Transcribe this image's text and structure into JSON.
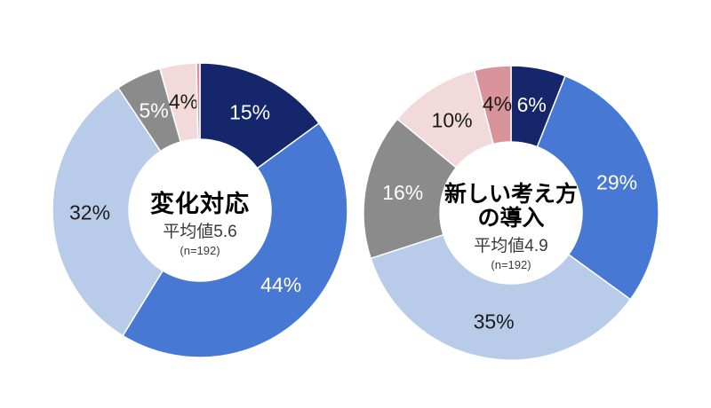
{
  "page": {
    "background_color": "#ffffff"
  },
  "chart_data": [
    {
      "type": "pie",
      "subtype": "donut",
      "title": "変化対応",
      "title_line2": "",
      "mean_label": "平均値5.6",
      "n_label": "(n=192)",
      "legend": "none",
      "start_angle_deg": 0,
      "direction": "clockwise",
      "segments": [
        {
          "label": "15%",
          "value": 15,
          "color": "#16266B",
          "text_color": "#ffffff"
        },
        {
          "label": "44%",
          "value": 44,
          "color": "#4779D4",
          "text_color": "#ffffff"
        },
        {
          "label": "32%",
          "value": 32,
          "color": "#B8CCE9",
          "text_color": "#1a1a1a"
        },
        {
          "label": "5%",
          "value": 5,
          "color": "#8B8B8B",
          "text_color": "#ffffff"
        },
        {
          "label": "4%",
          "value": 4,
          "color": "#F2DADA",
          "text_color": "#1a1a1a"
        },
        {
          "label": "",
          "value": 0,
          "draw_value": 0.4,
          "color": "#D9939B",
          "text_color": "#1a1a1a"
        }
      ]
    },
    {
      "type": "pie",
      "subtype": "donut",
      "title": "新しい考え方",
      "title_line2": "の導入",
      "mean_label": "平均値4.9",
      "n_label": "(n=192)",
      "legend": "none",
      "start_angle_deg": 0,
      "direction": "clockwise",
      "segments": [
        {
          "label": "6%",
          "value": 6,
          "color": "#16266B",
          "text_color": "#ffffff"
        },
        {
          "label": "29%",
          "value": 29,
          "color": "#4779D4",
          "text_color": "#ffffff"
        },
        {
          "label": "35%",
          "value": 35,
          "color": "#B8CCE9",
          "text_color": "#1a1a1a"
        },
        {
          "label": "16%",
          "value": 16,
          "color": "#8B8B8B",
          "text_color": "#ffffff"
        },
        {
          "label": "10%",
          "value": 10,
          "color": "#F2DADA",
          "text_color": "#1a1a1a"
        },
        {
          "label": "4%",
          "value": 4,
          "color": "#D9939B",
          "text_color": "#1a1a1a"
        }
      ]
    }
  ]
}
